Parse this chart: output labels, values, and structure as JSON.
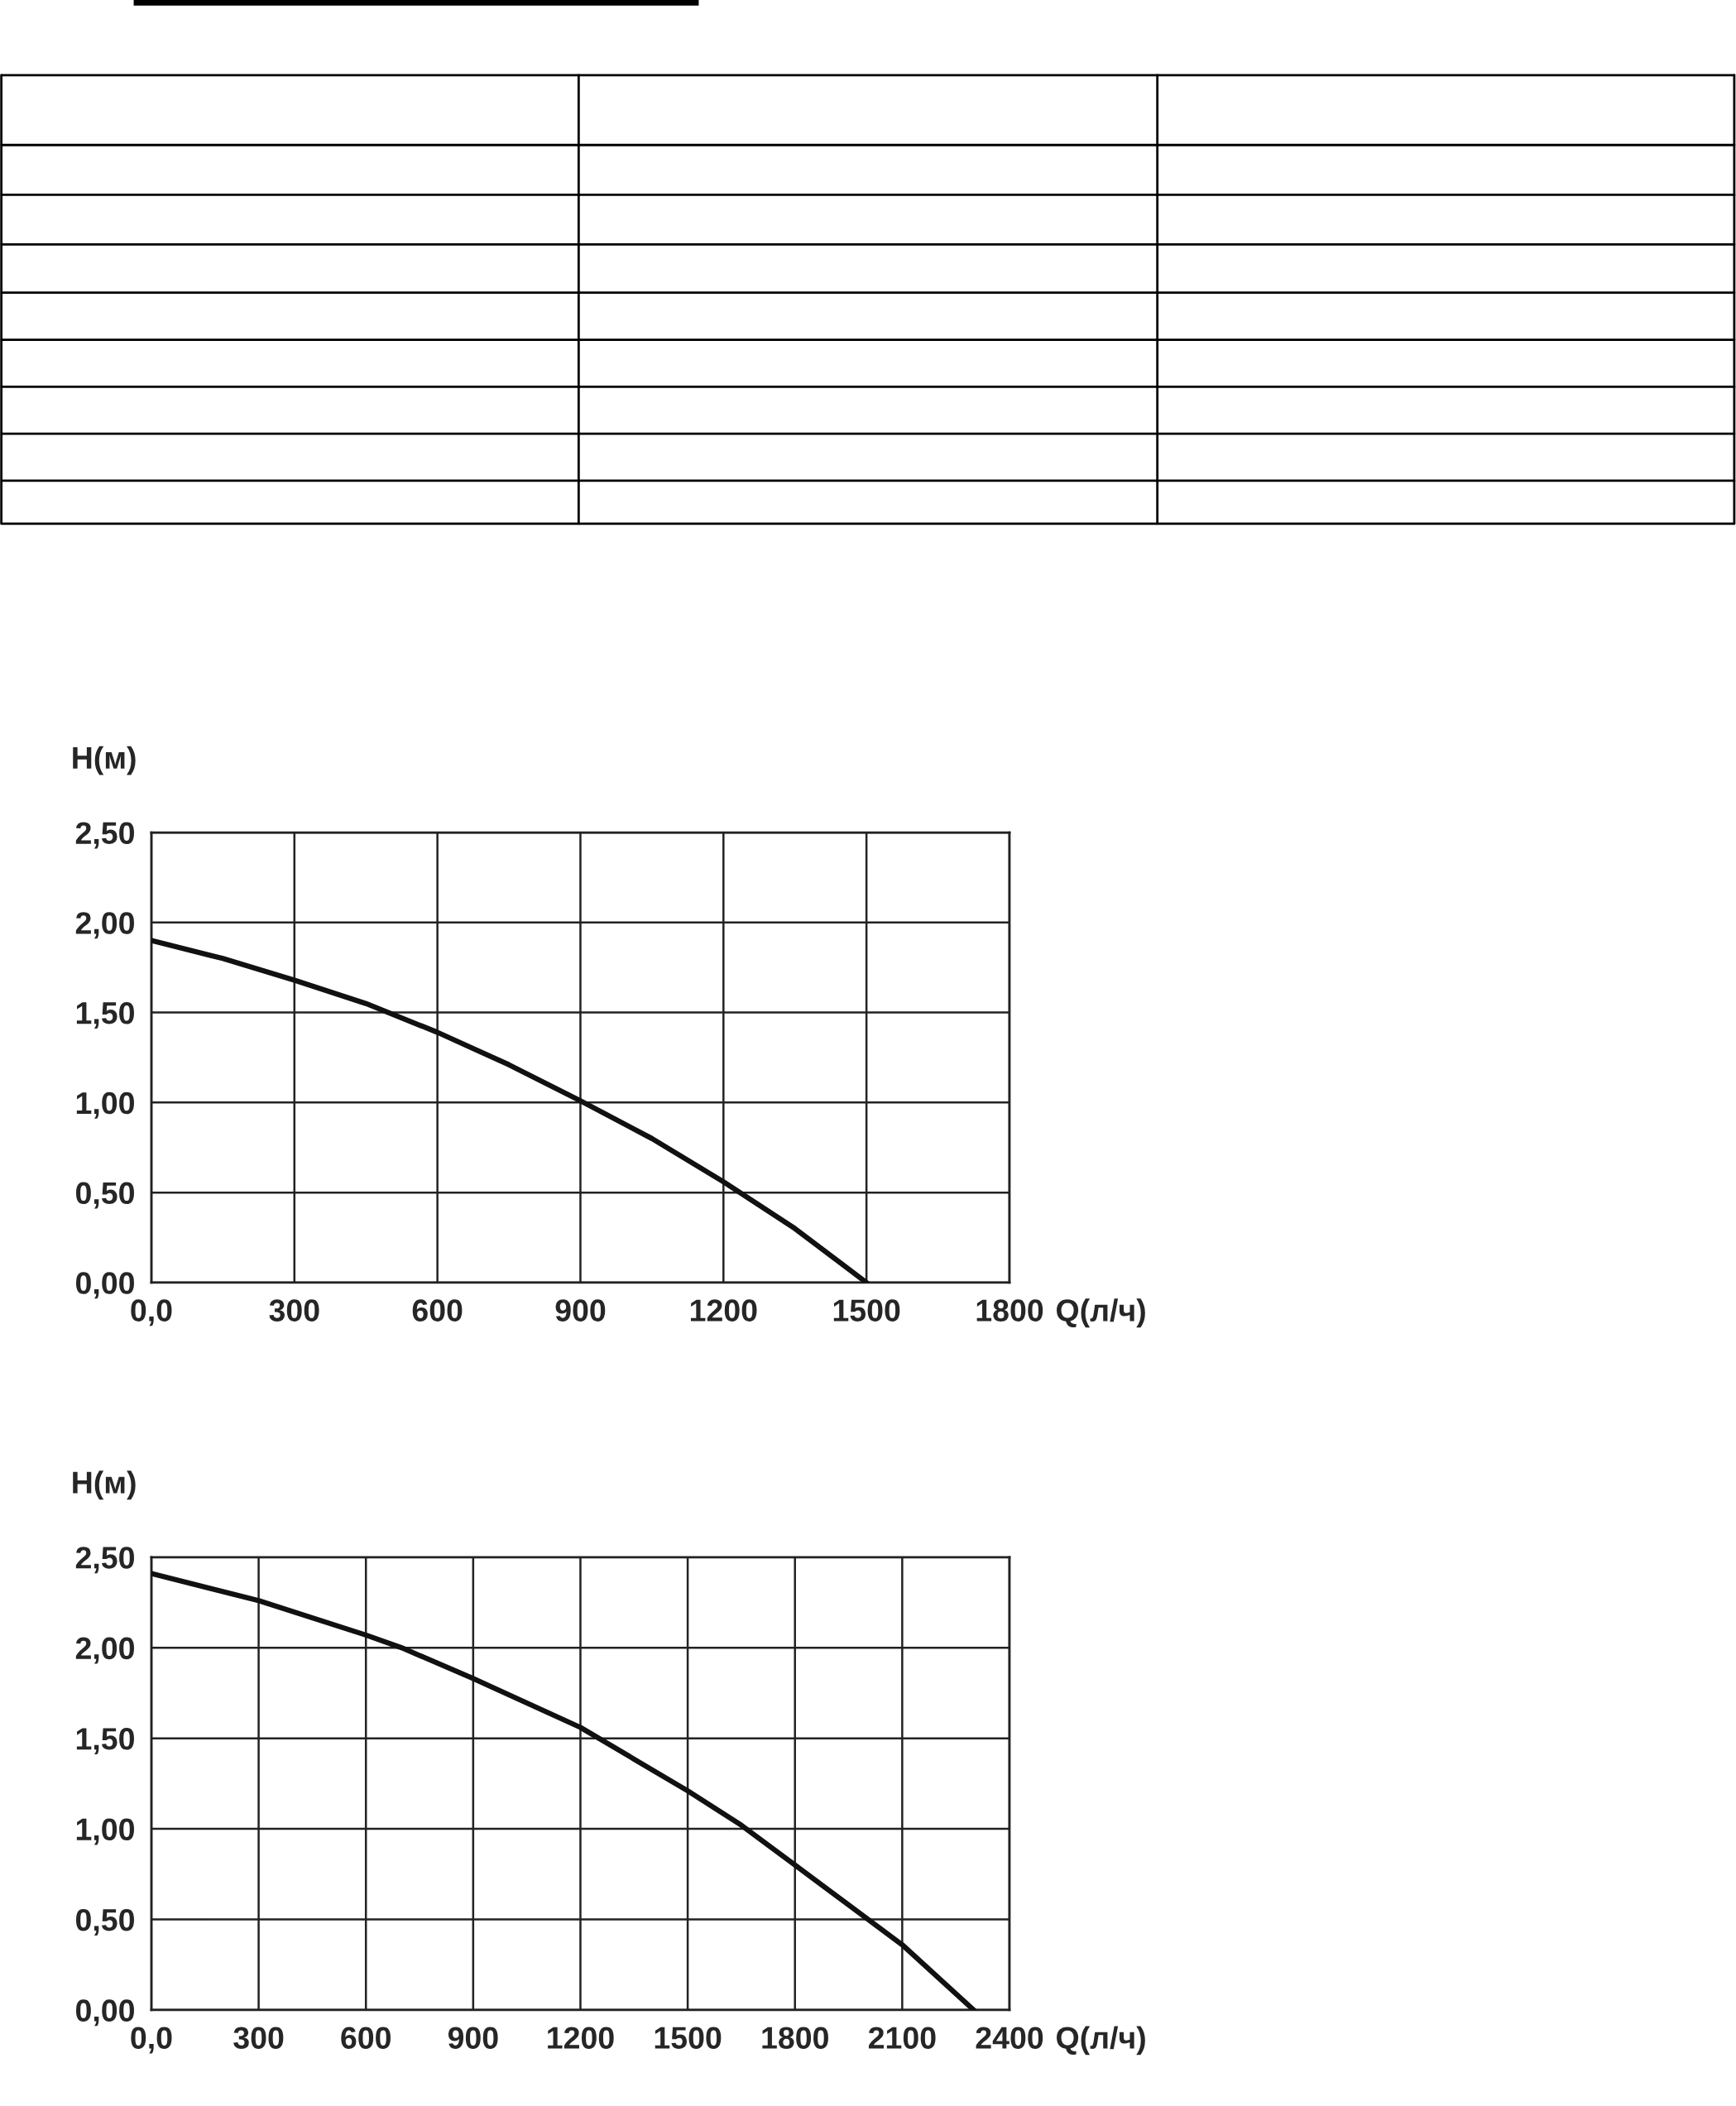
{
  "chart_data": [
    {
      "type": "line",
      "ylabel": "H(м)",
      "xlabel": "Q(л/ч)",
      "xlim": [
        0,
        1800
      ],
      "ylim": [
        0,
        2.5
      ],
      "grid": true,
      "marker": "none",
      "line_style": "solid",
      "xticks": [
        {
          "value": 0,
          "label": "0,0"
        },
        300,
        600,
        900,
        1200,
        1500,
        1800
      ],
      "yticks": [
        {
          "value": 0,
          "label": "0,00"
        },
        {
          "value": 0.5,
          "label": "0,50"
        },
        {
          "value": 1,
          "label": "1,00"
        },
        {
          "value": 1.5,
          "label": "1,50"
        },
        {
          "value": 2,
          "label": "2,00"
        },
        {
          "value": 2.5,
          "label": "2,50"
        }
      ],
      "series": [
        {
          "color": "#111111",
          "x": [
            0,
            150,
            300,
            450,
            600,
            750,
            900,
            1050,
            1200,
            1350,
            1500
          ],
          "values": [
            1.9,
            1.8,
            1.68,
            1.55,
            1.39,
            1.21,
            1.01,
            0.8,
            0.56,
            0.3,
            0.0
          ]
        }
      ]
    },
    {
      "type": "line",
      "ylabel": "H(м)",
      "xlabel": "Q(л/ч)",
      "xlim": [
        0,
        2400
      ],
      "ylim": [
        0,
        2.5
      ],
      "grid": true,
      "marker": "none",
      "line_style": "solid",
      "xticks": [
        {
          "value": 0,
          "label": "0,0"
        },
        300,
        600,
        900,
        1200,
        1500,
        1800,
        2100,
        2400
      ],
      "yticks": [
        {
          "value": 0,
          "label": "0,00"
        },
        {
          "value": 0.5,
          "label": "0,50"
        },
        {
          "value": 1,
          "label": "1,00"
        },
        {
          "value": 1.5,
          "label": "1,50"
        },
        {
          "value": 2,
          "label": "2,00"
        },
        {
          "value": 2.5,
          "label": "2,50"
        }
      ],
      "series": [
        {
          "color": "#111111",
          "x": [
            0,
            300,
            600,
            700,
            900,
            1200,
            1500,
            1650,
            1800,
            2100,
            2300
          ],
          "values": [
            2.41,
            2.26,
            2.07,
            2.0,
            1.83,
            1.56,
            1.21,
            1.02,
            0.8,
            0.36,
            0.0
          ]
        }
      ]
    }
  ]
}
